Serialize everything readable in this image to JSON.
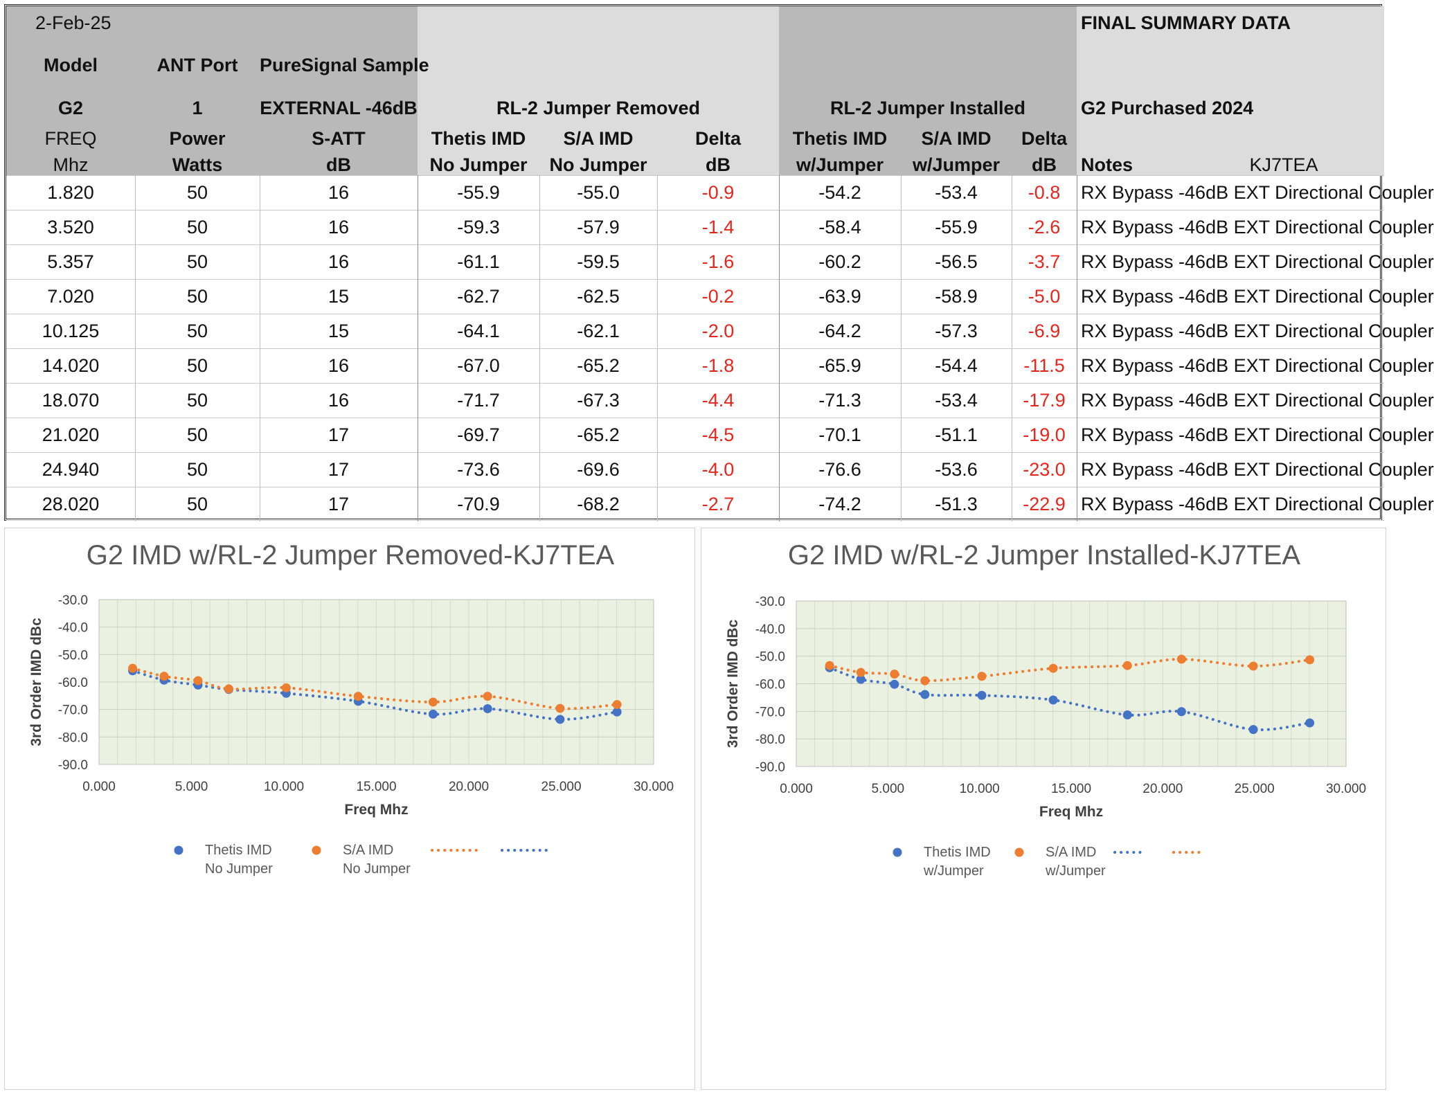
{
  "header": {
    "date": "2-Feb-25",
    "model_label": "Model",
    "model_value": "G2",
    "ant_port_label": "ANT Port",
    "ant_port_value": "1",
    "ps_label": "PureSignal Sample",
    "ps_value": "EXTERNAL -46dB",
    "group_removed": "RL-2 Jumper Removed",
    "group_installed": "RL-2 Jumper Installed",
    "summary_title": "FINAL SUMMARY DATA",
    "purchased": "G2 Purchased 2024",
    "callsign": "KJ7TEA",
    "columns": [
      {
        "line1": "FREQ",
        "line2": "Mhz"
      },
      {
        "line1": "Power",
        "line2": "Watts"
      },
      {
        "line1": "S-ATT",
        "line2": "dB"
      },
      {
        "line1": "Thetis IMD",
        "line2": "No Jumper"
      },
      {
        "line1": "S/A IMD",
        "line2": "No Jumper"
      },
      {
        "line1": "Delta",
        "line2": "dB"
      },
      {
        "line1": "Thetis IMD",
        "line2": "w/Jumper"
      },
      {
        "line1": "S/A  IMD",
        "line2": "w/Jumper"
      },
      {
        "line1": "Delta",
        "line2": "dB"
      },
      {
        "line1": "",
        "line2": "Notes"
      }
    ]
  },
  "rows": [
    [
      "1.820",
      "50",
      "16",
      "-55.9",
      "-55.0",
      "-0.9",
      "-54.2",
      "-53.4",
      "-0.8",
      "RX Bypass -46dB EXT Directional Coupler"
    ],
    [
      "3.520",
      "50",
      "16",
      "-59.3",
      "-57.9",
      "-1.4",
      "-58.4",
      "-55.9",
      "-2.6",
      "RX Bypass -46dB EXT Directional Coupler"
    ],
    [
      "5.357",
      "50",
      "16",
      "-61.1",
      "-59.5",
      "-1.6",
      "-60.2",
      "-56.5",
      "-3.7",
      "RX Bypass -46dB EXT Directional Coupler"
    ],
    [
      "7.020",
      "50",
      "15",
      "-62.7",
      "-62.5",
      "-0.2",
      "-63.9",
      "-58.9",
      "-5.0",
      "RX Bypass -46dB EXT Directional Coupler"
    ],
    [
      "10.125",
      "50",
      "15",
      "-64.1",
      "-62.1",
      "-2.0",
      "-64.2",
      "-57.3",
      "-6.9",
      "RX Bypass -46dB EXT Directional Coupler"
    ],
    [
      "14.020",
      "50",
      "16",
      "-67.0",
      "-65.2",
      "-1.8",
      "-65.9",
      "-54.4",
      "-11.5",
      "RX Bypass -46dB EXT Directional Coupler"
    ],
    [
      "18.070",
      "50",
      "16",
      "-71.7",
      "-67.3",
      "-4.4",
      "-71.3",
      "-53.4",
      "-17.9",
      "RX Bypass -46dB EXT Directional Coupler"
    ],
    [
      "21.020",
      "50",
      "17",
      "-69.7",
      "-65.2",
      "-4.5",
      "-70.1",
      "-51.1",
      "-19.0",
      "RX Bypass -46dB EXT Directional Coupler"
    ],
    [
      "24.940",
      "50",
      "17",
      "-73.6",
      "-69.6",
      "-4.0",
      "-76.6",
      "-53.6",
      "-23.0",
      "RX Bypass -46dB EXT Directional Coupler"
    ],
    [
      "28.020",
      "50",
      "17",
      "-70.9",
      "-68.2",
      "-2.7",
      "-74.2",
      "-51.3",
      "-22.9",
      "RX Bypass -46dB EXT Directional Coupler"
    ]
  ],
  "colors": {
    "header_bg_dark": "#b9b9b9",
    "header_bg_light": "#dcdcdc",
    "delta_text": "#e8251c",
    "plot_bg": "#eaf1e1",
    "thetis_series": "#4472c4",
    "sa_series": "#ed7d31"
  },
  "chart_data": [
    {
      "type": "scatter",
      "title": "G2 IMD w/RL-2 Jumper Removed-KJ7TEA",
      "xlabel": "Freq Mhz",
      "ylabel": "3rd Order IMD dBc",
      "xlim": [
        0,
        30
      ],
      "ylim": [
        -90,
        -30
      ],
      "x_ticks": [
        "0.000",
        "5.000",
        "10.000",
        "15.000",
        "20.000",
        "25.000",
        "30.000"
      ],
      "y_ticks": [
        "-30.0",
        "-40.0",
        "-50.0",
        "-60.0",
        "-70.0",
        "-80.0",
        "-90.0"
      ],
      "x": [
        1.82,
        3.52,
        5.357,
        7.02,
        10.125,
        14.02,
        18.07,
        21.02,
        24.94,
        28.02
      ],
      "series": [
        {
          "name": "Thetis IMD",
          "sub": "No Jumper",
          "color": "#4472c4",
          "values": [
            -55.9,
            -59.3,
            -61.1,
            -62.7,
            -64.1,
            -67.0,
            -71.7,
            -69.7,
            -73.6,
            -70.9
          ]
        },
        {
          "name": "S/A IMD",
          "sub": "No Jumper",
          "color": "#ed7d31",
          "values": [
            -55.0,
            -57.9,
            -59.5,
            -62.5,
            -62.1,
            -65.2,
            -67.3,
            -65.2,
            -69.6,
            -68.2
          ]
        }
      ],
      "trendline_order": [
        "#ed7d31",
        "#4472c4"
      ],
      "grid": true,
      "legend": "bottom"
    },
    {
      "type": "scatter",
      "title": "G2 IMD w/RL-2 Jumper Installed-KJ7TEA",
      "xlabel": "Freq Mhz",
      "ylabel": "3rd Order IMD dBc",
      "xlim": [
        0,
        30
      ],
      "ylim": [
        -90,
        -30
      ],
      "x_ticks": [
        "0.000",
        "5.000",
        "10.000",
        "15.000",
        "20.000",
        "25.000",
        "30.000"
      ],
      "y_ticks": [
        "-30.0",
        "-40.0",
        "-50.0",
        "-60.0",
        "-70.0",
        "-80.0",
        "-90.0"
      ],
      "x": [
        1.82,
        3.52,
        5.357,
        7.02,
        10.125,
        14.02,
        18.07,
        21.02,
        24.94,
        28.02
      ],
      "series": [
        {
          "name": "Thetis IMD",
          "sub": "w/Jumper",
          "color": "#4472c4",
          "values": [
            -54.2,
            -58.4,
            -60.2,
            -63.9,
            -64.2,
            -65.9,
            -71.3,
            -70.1,
            -76.6,
            -74.2
          ]
        },
        {
          "name": "S/A  IMD",
          "sub": "w/Jumper",
          "color": "#ed7d31",
          "values": [
            -53.4,
            -55.9,
            -56.5,
            -58.9,
            -57.3,
            -54.4,
            -53.4,
            -51.1,
            -53.6,
            -51.3
          ]
        }
      ],
      "trendline_order": [
        "#4472c4",
        "#ed7d31"
      ],
      "grid": true,
      "legend": "bottom"
    }
  ]
}
